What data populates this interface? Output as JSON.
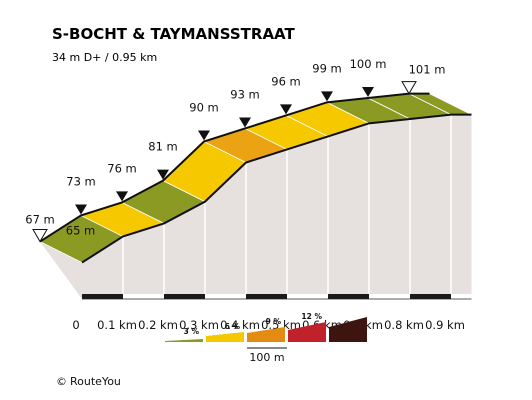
{
  "chart_data": {
    "type": "area",
    "title": "S-BOCHT & TAYMANSSTRAAT",
    "subtitle": "34 m D+ / 0.95 km",
    "xunit": "km",
    "yunit": "m",
    "x_ticks": [
      "0",
      "0.1 km",
      "0.2 km",
      "0.3 km",
      "0.4 km",
      "0.5 km",
      "0.6 km",
      "0.7 km",
      "0.8 km",
      "0.9 km"
    ],
    "points": [
      {
        "x": 0.0,
        "y": 67,
        "label": "67 m",
        "marker": "start"
      },
      {
        "x": 0.05,
        "y": 65,
        "label": "65 m",
        "marker": "none"
      },
      {
        "x": 0.1,
        "y": 73,
        "label": "73 m",
        "marker": "point"
      },
      {
        "x": 0.2,
        "y": 76,
        "label": "76 m",
        "marker": "point"
      },
      {
        "x": 0.3,
        "y": 81,
        "label": "81 m",
        "marker": "point"
      },
      {
        "x": 0.4,
        "y": 90,
        "label": "90 m",
        "marker": "point"
      },
      {
        "x": 0.5,
        "y": 93,
        "label": "93 m",
        "marker": "point"
      },
      {
        "x": 0.6,
        "y": 96,
        "label": "96 m",
        "marker": "point"
      },
      {
        "x": 0.7,
        "y": 99,
        "label": "99 m",
        "marker": "point"
      },
      {
        "x": 0.8,
        "y": 100,
        "label": "100 m",
        "marker": "point"
      },
      {
        "x": 0.9,
        "y": 101,
        "label": "101 m",
        "marker": "end"
      }
    ],
    "segments": [
      {
        "from": 0.0,
        "to": 0.1,
        "grade": 0
      },
      {
        "from": 0.1,
        "to": 0.2,
        "grade": 6
      },
      {
        "from": 0.2,
        "to": 0.3,
        "grade": 3
      },
      {
        "from": 0.3,
        "to": 0.4,
        "grade": 5
      },
      {
        "from": 0.4,
        "to": 0.5,
        "grade": 9
      },
      {
        "from": 0.5,
        "to": 0.6,
        "grade": 5
      },
      {
        "from": 0.6,
        "to": 0.7,
        "grade": 5
      },
      {
        "from": 0.7,
        "to": 0.8,
        "grade": 3
      },
      {
        "from": 0.8,
        "to": 0.9,
        "grade": 1
      },
      {
        "from": 0.9,
        "to": 0.95,
        "grade": 1
      }
    ],
    "legend": [
      {
        "label": "3 %",
        "color": "#8a9a23"
      },
      {
        "label": "6 %",
        "color": "#f5c800"
      },
      {
        "label": "9 %",
        "color": "#e38b12"
      },
      {
        "label": "12 %",
        "color": "#c0212a"
      },
      {
        "label": "",
        "color": "#3d1410"
      }
    ],
    "scale_label": "100 m",
    "colors": {
      "flat": "#8a9a23",
      "moderate": "#f5c800",
      "steep": "#eba314",
      "side": "#e6e1de",
      "base": "#1a1a1a"
    }
  },
  "credit": {
    "symbol": "©",
    "text": "RouteYou"
  }
}
